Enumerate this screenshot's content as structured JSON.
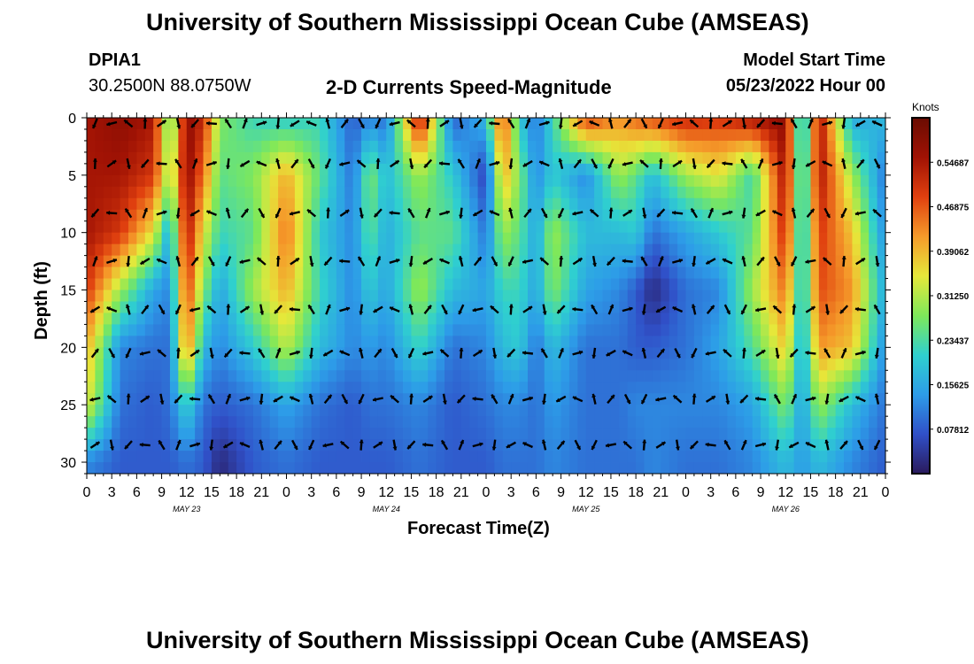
{
  "page_title": "University of Southern Mississippi Ocean Cube (AMSEAS)",
  "station": {
    "id": "DPIA1",
    "coords": "30.2500N  88.0750W"
  },
  "plot_title": "2-D Currents Speed-Magnitude",
  "model_start": {
    "label": "Model Start Time",
    "value": "05/23/2022 Hour 00"
  },
  "footer_title": "University of Southern Mississippi Ocean Cube (AMSEAS)",
  "chart_data": {
    "type": "heatmap",
    "title": "2-D Currents Speed-Magnitude",
    "xlabel": "Forecast Time(Z)",
    "ylabel": "Depth (ft)",
    "x_range_hours": [
      0,
      96
    ],
    "y_range_ft": [
      0,
      31
    ],
    "x_tick_labels": [
      "0",
      "3",
      "6",
      "9",
      "12",
      "15",
      "18",
      "21",
      "0",
      "3",
      "6",
      "9",
      "12",
      "15",
      "18",
      "21",
      "0",
      "3",
      "6",
      "9",
      "12",
      "15",
      "18",
      "21",
      "0",
      "3",
      "6",
      "9",
      "12",
      "15",
      "18",
      "21",
      "0"
    ],
    "day_labels": [
      {
        "text": "MAY 23",
        "hour": 12
      },
      {
        "text": "MAY 24",
        "hour": 36
      },
      {
        "text": "MAY 25",
        "hour": 60
      },
      {
        "text": "MAY 26",
        "hour": 84
      }
    ],
    "y_ticks": [
      0,
      5,
      10,
      15,
      20,
      25,
      30
    ],
    "colorbar": {
      "unit": "Knots",
      "min": 0,
      "max": 0.625,
      "tick_labels": [
        {
          "text": "0.54687",
          "value": 0.546875
        },
        {
          "text": "0.46875",
          "value": 0.46875
        },
        {
          "text": "0.39062",
          "value": 0.390625
        },
        {
          "text": "0.31250",
          "value": 0.3125
        },
        {
          "text": "0.23437",
          "value": 0.234375
        },
        {
          "text": "0.15625",
          "value": 0.15625
        },
        {
          "text": "0.07812",
          "value": 0.078125
        }
      ],
      "colors": [
        "#2a1a5c",
        "#3050c8",
        "#2d9ce8",
        "#2fd0cf",
        "#7ee85a",
        "#e6e83a",
        "#f59a2a",
        "#e0400f",
        "#a01204",
        "#6a0c02"
      ]
    },
    "arrow_depths_ft": [
      0.5,
      4,
      8.3,
      12.5,
      16.7,
      20.5,
      24.5,
      28.5
    ],
    "arrow_time_step_hours": 2,
    "speed_grid": {
      "hours": [
        0,
        4,
        8,
        10,
        12,
        14,
        16,
        20,
        24,
        28,
        32,
        34,
        36,
        40,
        44,
        48,
        50,
        52,
        54,
        56,
        60,
        64,
        66,
        68,
        72,
        76,
        80,
        84,
        86,
        88,
        92,
        96
      ],
      "depths_ft": [
        0,
        5,
        10,
        15,
        20,
        25,
        30
      ],
      "values": [
        [
          0.55,
          0.58,
          0.55,
          0.22,
          0.58,
          0.52,
          0.28,
          0.22,
          0.2,
          0.22,
          0.08,
          0.12,
          0.1,
          0.55,
          0.08,
          0.18,
          0.5,
          0.2,
          0.1,
          0.22,
          0.5,
          0.42,
          0.46,
          0.48,
          0.52,
          0.5,
          0.55,
          0.58,
          0.12,
          0.56,
          0.15,
          0.18
        ],
        [
          0.55,
          0.55,
          0.5,
          0.28,
          0.58,
          0.45,
          0.25,
          0.28,
          0.4,
          0.25,
          0.1,
          0.28,
          0.18,
          0.3,
          0.2,
          0.05,
          0.4,
          0.28,
          0.12,
          0.2,
          0.12,
          0.3,
          0.25,
          0.18,
          0.3,
          0.35,
          0.22,
          0.56,
          0.15,
          0.55,
          0.3,
          0.1
        ],
        [
          0.55,
          0.5,
          0.35,
          0.15,
          0.55,
          0.35,
          0.22,
          0.25,
          0.45,
          0.2,
          0.12,
          0.25,
          0.16,
          0.25,
          0.25,
          0.1,
          0.3,
          0.25,
          0.15,
          0.3,
          0.18,
          0.18,
          0.2,
          0.1,
          0.15,
          0.2,
          0.25,
          0.52,
          0.15,
          0.5,
          0.38,
          0.12
        ],
        [
          0.5,
          0.3,
          0.15,
          0.12,
          0.5,
          0.28,
          0.15,
          0.3,
          0.4,
          0.22,
          0.12,
          0.2,
          0.15,
          0.3,
          0.18,
          0.15,
          0.22,
          0.22,
          0.15,
          0.28,
          0.15,
          0.12,
          0.08,
          0.02,
          0.1,
          0.12,
          0.3,
          0.45,
          0.16,
          0.48,
          0.42,
          0.15
        ],
        [
          0.4,
          0.12,
          0.1,
          0.1,
          0.45,
          0.18,
          0.12,
          0.2,
          0.32,
          0.18,
          0.12,
          0.14,
          0.12,
          0.22,
          0.1,
          0.12,
          0.18,
          0.2,
          0.1,
          0.18,
          0.1,
          0.1,
          0.08,
          0.08,
          0.1,
          0.15,
          0.24,
          0.38,
          0.15,
          0.42,
          0.38,
          0.12
        ],
        [
          0.35,
          0.1,
          0.08,
          0.1,
          0.22,
          0.1,
          0.08,
          0.1,
          0.15,
          0.1,
          0.08,
          0.1,
          0.1,
          0.12,
          0.08,
          0.1,
          0.12,
          0.12,
          0.1,
          0.14,
          0.1,
          0.1,
          0.12,
          0.12,
          0.12,
          0.12,
          0.15,
          0.28,
          0.14,
          0.3,
          0.18,
          0.1
        ],
        [
          0.12,
          0.08,
          0.08,
          0.08,
          0.1,
          0.08,
          0.02,
          0.08,
          0.1,
          0.08,
          0.08,
          0.08,
          0.08,
          0.1,
          0.08,
          0.08,
          0.1,
          0.1,
          0.1,
          0.12,
          0.1,
          0.1,
          0.1,
          0.12,
          0.1,
          0.1,
          0.12,
          0.18,
          0.14,
          0.18,
          0.12,
          0.08
        ]
      ]
    }
  }
}
